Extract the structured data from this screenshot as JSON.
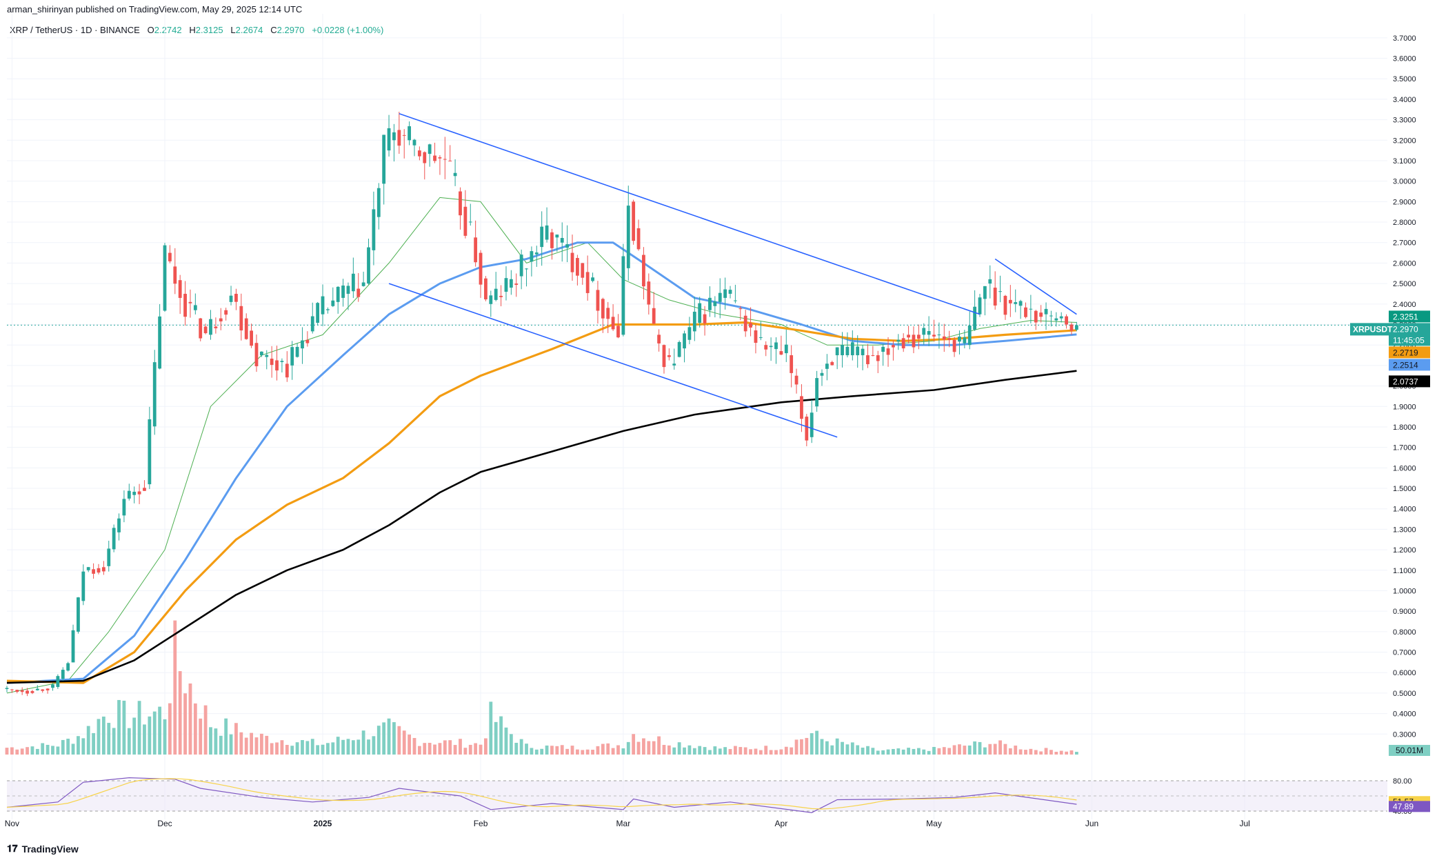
{
  "header": {
    "published_line": "arman_shirinyan published on TradingView.com, May 29, 2025 12:14 UTC",
    "symbol_line": "XRP / TetherUS · 1D · BINANCE",
    "open_label": "O",
    "open": "2.2742",
    "high_label": "H",
    "high": "2.3125",
    "low_label": "L",
    "low": "2.2674",
    "close_label": "C",
    "close": "2.2970",
    "change": "+0.0228 (+1.00%)"
  },
  "brand": {
    "logo_icon": "tradingview-logo-icon",
    "name": "TradingView"
  },
  "colors": {
    "up": "#26a69a",
    "down": "#ef5350",
    "vol_up": "#7fcfc3",
    "vol_down": "#f5a3a1",
    "sma20": "#4caf50",
    "sma50": "#5b9cf0",
    "sma100": "#f39c12",
    "sma200": "#000000",
    "trendline": "#2962ff",
    "rsi": "#7e57c2",
    "rsi_ma": "#f7d34a"
  },
  "chart_data": {
    "type": "candlestick",
    "title": "XRP / TetherUS · 1D · BINANCE",
    "y_axis_ticks": [
      "0.3000",
      "0.4000",
      "0.5000",
      "0.6000",
      "0.7000",
      "0.8000",
      "0.9000",
      "1.0000",
      "1.1000",
      "1.2000",
      "1.3000",
      "1.4000",
      "1.5000",
      "1.6000",
      "1.7000",
      "1.8000",
      "1.9000",
      "2.0000",
      "2.1000",
      "2.2000",
      "2.3000",
      "2.4000",
      "2.5000",
      "2.6000",
      "2.7000",
      "2.8000",
      "2.9000",
      "3.0000",
      "3.1000",
      "3.2000",
      "3.3000",
      "3.4000",
      "3.5000",
      "3.6000",
      "3.7000"
    ],
    "ylim": [
      0.2,
      3.75
    ],
    "x_axis_ticks": [
      "Nov",
      "Dec",
      "2025",
      "Feb",
      "Mar",
      "Apr",
      "May",
      "Jun",
      "Jul"
    ],
    "x_tick_dates": [
      "2024-11-01",
      "2024-12-01",
      "2025-01-01",
      "2025-02-01",
      "2025-03-01",
      "2025-04-01",
      "2025-05-01",
      "2025-06-01",
      "2025-07-01"
    ],
    "xlim": [
      "2024-10-31",
      "2025-07-29"
    ],
    "price_points": {
      "dates": [
        "2024-10-31",
        "2024-11-05",
        "2024-11-10",
        "2024-11-13",
        "2024-11-16",
        "2024-11-20",
        "2024-11-24",
        "2024-11-28",
        "2024-12-02",
        "2024-12-05",
        "2024-12-10",
        "2024-12-15",
        "2024-12-20",
        "2024-12-26",
        "2025-01-01",
        "2025-01-06",
        "2025-01-10",
        "2025-01-14",
        "2025-01-16",
        "2025-01-20",
        "2025-01-26",
        "2025-02-01",
        "2025-02-03",
        "2025-02-08",
        "2025-02-15",
        "2025-02-21",
        "2025-03-01",
        "2025-03-03",
        "2025-03-08",
        "2025-03-11",
        "2025-03-17",
        "2025-03-22",
        "2025-03-29",
        "2025-04-03",
        "2025-04-07",
        "2025-04-09",
        "2025-04-12",
        "2025-04-20",
        "2025-04-26",
        "2025-05-02",
        "2025-05-08",
        "2025-05-12",
        "2025-05-17",
        "2025-05-23",
        "2025-05-29"
      ],
      "close": [
        0.52,
        0.51,
        0.53,
        0.65,
        1.1,
        1.12,
        1.45,
        1.52,
        2.65,
        2.45,
        2.25,
        2.45,
        2.15,
        2.1,
        2.35,
        2.45,
        2.5,
        3.15,
        3.25,
        3.15,
        3.1,
        2.65,
        2.4,
        2.5,
        2.75,
        2.6,
        2.25,
        2.9,
        2.25,
        2.1,
        2.35,
        2.45,
        2.2,
        2.15,
        1.75,
        2.05,
        2.15,
        2.15,
        2.25,
        2.25,
        2.2,
        2.5,
        2.4,
        2.35,
        2.297
      ]
    },
    "last_candles": [
      {
        "date": "2025-05-25",
        "open": 2.32,
        "close": 2.33,
        "high": 2.36,
        "low": 2.29
      },
      {
        "date": "2025-05-26",
        "open": 2.33,
        "close": 2.34,
        "high": 2.36,
        "low": 2.31
      },
      {
        "date": "2025-05-27",
        "open": 2.34,
        "close": 2.3,
        "high": 2.35,
        "low": 2.28
      },
      {
        "date": "2025-05-28",
        "open": 2.3,
        "close": 2.27,
        "high": 2.31,
        "low": 2.25
      },
      {
        "date": "2025-05-29",
        "open": 2.2742,
        "close": 2.297,
        "high": 2.3125,
        "low": 2.2674
      }
    ],
    "moving_averages": [
      {
        "dates": [
          "2024-10-31",
          "2024-11-12",
          "2024-11-20",
          "2024-12-01",
          "2024-12-10",
          "2024-12-20",
          "2025-01-01",
          "2025-01-14",
          "2025-01-24",
          "2025-02-01",
          "2025-02-10",
          "2025-02-22",
          "2025-03-01",
          "2025-03-10",
          "2025-03-20",
          "2025-04-01",
          "2025-04-10",
          "2025-04-20",
          "2025-05-01",
          "2025-05-10",
          "2025-05-20",
          "2025-05-29"
        ],
        "values": [
          0.5,
          0.56,
          0.8,
          1.2,
          1.9,
          2.15,
          2.25,
          2.6,
          2.92,
          2.9,
          2.6,
          2.7,
          2.52,
          2.42,
          2.35,
          2.3,
          2.2,
          2.2,
          2.22,
          2.28,
          2.32,
          2.31
        ]
      },
      {
        "dates": [
          "2024-10-31",
          "2024-11-15",
          "2024-11-25",
          "2024-12-05",
          "2024-12-15",
          "2024-12-25",
          "2025-01-05",
          "2025-01-14",
          "2025-01-24",
          "2025-02-01",
          "2025-02-10",
          "2025-02-20",
          "2025-02-27",
          "2025-03-05",
          "2025-03-15",
          "2025-03-25",
          "2025-04-05",
          "2025-04-15",
          "2025-04-25",
          "2025-05-05",
          "2025-05-15",
          "2025-05-29"
        ],
        "values": [
          0.55,
          0.57,
          0.78,
          1.15,
          1.55,
          1.9,
          2.15,
          2.35,
          2.5,
          2.58,
          2.62,
          2.7,
          2.7,
          2.6,
          2.43,
          2.38,
          2.3,
          2.22,
          2.2,
          2.2,
          2.22,
          2.2514
        ]
      },
      {
        "dates": [
          "2024-10-31",
          "2024-11-15",
          "2024-11-25",
          "2024-12-05",
          "2024-12-15",
          "2024-12-25",
          "2025-01-05",
          "2025-01-14",
          "2025-01-24",
          "2025-02-01",
          "2025-02-15",
          "2025-02-27",
          "2025-03-05",
          "2025-03-15",
          "2025-03-25",
          "2025-04-05",
          "2025-04-15",
          "2025-04-25",
          "2025-05-05",
          "2025-05-15",
          "2025-05-29"
        ],
        "values": [
          0.56,
          0.55,
          0.7,
          1.0,
          1.25,
          1.42,
          1.55,
          1.72,
          1.95,
          2.05,
          2.18,
          2.3,
          2.3,
          2.3,
          2.31,
          2.27,
          2.23,
          2.22,
          2.23,
          2.25,
          2.2719
        ]
      },
      {
        "dates": [
          "2024-10-31",
          "2024-11-15",
          "2024-11-25",
          "2024-12-05",
          "2024-12-15",
          "2024-12-25",
          "2025-01-05",
          "2025-01-14",
          "2025-01-24",
          "2025-02-01",
          "2025-02-15",
          "2025-03-01",
          "2025-03-15",
          "2025-04-01",
          "2025-04-15",
          "2025-05-01",
          "2025-05-15",
          "2025-05-29"
        ],
        "values": [
          0.55,
          0.56,
          0.66,
          0.82,
          0.98,
          1.1,
          1.2,
          1.32,
          1.48,
          1.58,
          1.68,
          1.78,
          1.86,
          1.92,
          1.95,
          1.98,
          2.03,
          2.0737
        ]
      }
    ],
    "trendlines": [
      {
        "from": {
          "date": "2025-01-16",
          "value": 3.33
        },
        "to": {
          "date": "2025-05-10",
          "value": 2.35
        }
      },
      {
        "from": {
          "date": "2025-01-14",
          "value": 2.5
        },
        "to": {
          "date": "2025-04-12",
          "value": 1.75
        }
      },
      {
        "from": {
          "date": "2025-05-13",
          "value": 2.62
        },
        "to": {
          "date": "2025-05-29",
          "value": 2.35
        }
      }
    ],
    "price_labels": [
      {
        "text": "2.3251",
        "value": 2.3251,
        "color": "#089981",
        "text_color": "#ffffff"
      },
      {
        "text": "XRPUSDT",
        "value": 2.297,
        "color": "#26a69a",
        "text_color": "#ffffff",
        "inline": "2.2970"
      },
      {
        "text": "11:45:05",
        "value": 2.27,
        "color": "#26a69a",
        "text_color": "#ffffff"
      },
      {
        "text": "2.2719",
        "value": 2.2719,
        "color": "#f39c12",
        "text_color": "#131722"
      },
      {
        "text": "2.2514",
        "value": 2.2514,
        "color": "#5b9cf0",
        "text_color": "#131722"
      },
      {
        "text": "2.0737",
        "value": 2.0737,
        "color": "#000000",
        "text_color": "#ffffff"
      }
    ],
    "volume": {
      "label": "50.01M",
      "dates": [
        "2024-11-01",
        "2024-11-10",
        "2024-11-15",
        "2024-11-20",
        "2024-11-24",
        "2024-12-01",
        "2024-12-03",
        "2024-12-10",
        "2024-12-20",
        "2025-01-01",
        "2025-01-14",
        "2025-01-20",
        "2025-02-01",
        "2025-02-03",
        "2025-02-10",
        "2025-02-20",
        "2025-03-01",
        "2025-03-03",
        "2025-03-10",
        "2025-03-20",
        "2025-04-01",
        "2025-04-07",
        "2025-04-09",
        "2025-04-20",
        "2025-05-01",
        "2025-05-12",
        "2025-05-20",
        "2025-05-29"
      ],
      "values": [
        10,
        14,
        30,
        62,
        55,
        62,
        140,
        45,
        25,
        15,
        38,
        20,
        15,
        55,
        12,
        10,
        14,
        30,
        18,
        9,
        10,
        30,
        22,
        6,
        8,
        17,
        8,
        5
      ]
    },
    "rsi": {
      "ticks": [
        "80.00",
        "40.00"
      ],
      "current_ma": "51.57",
      "current": "47.89",
      "dates": [
        "2024-10-31",
        "2024-11-10",
        "2024-11-15",
        "2024-11-24",
        "2024-12-03",
        "2024-12-08",
        "2024-12-20",
        "2024-12-30",
        "2025-01-10",
        "2025-01-16",
        "2025-01-28",
        "2025-02-03",
        "2025-02-15",
        "2025-03-01",
        "2025-03-03",
        "2025-03-11",
        "2025-03-22",
        "2025-04-07",
        "2025-04-12",
        "2025-04-25",
        "2025-05-05",
        "2025-05-13",
        "2025-05-29"
      ],
      "values": [
        45,
        52,
        78,
        84,
        82,
        70,
        58,
        52,
        58,
        70,
        60,
        42,
        50,
        42,
        56,
        45,
        52,
        38,
        55,
        56,
        58,
        64,
        49
      ]
    }
  }
}
